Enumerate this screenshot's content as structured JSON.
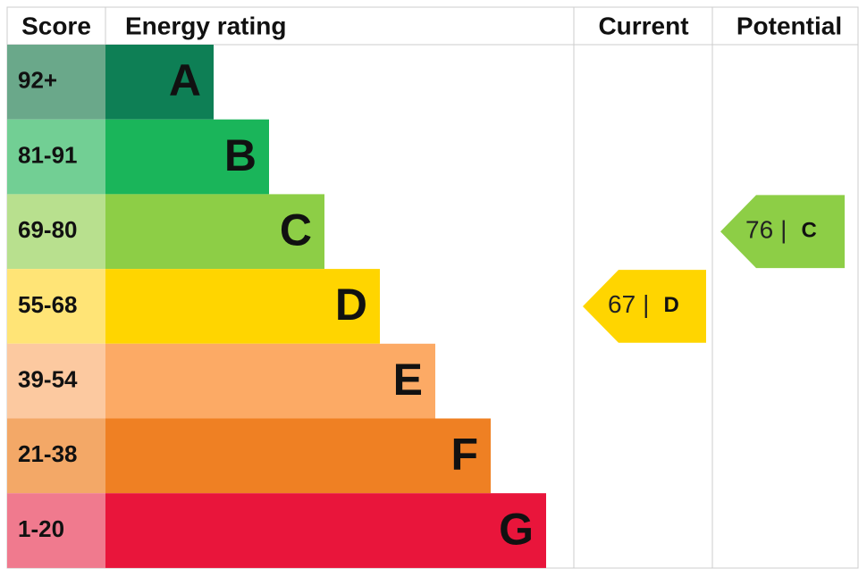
{
  "header": {
    "score": "Score",
    "rating": "Energy rating",
    "current": "Current",
    "potential": "Potential"
  },
  "bands": [
    {
      "range": "92+",
      "letter": "A",
      "color": "#0e7f55",
      "light": "#6aa88a"
    },
    {
      "range": "81-91",
      "letter": "B",
      "color": "#1ab55a",
      "light": "#72cf94"
    },
    {
      "range": "69-80",
      "letter": "C",
      "color": "#8dce46",
      "light": "#b8e08e"
    },
    {
      "range": "55-68",
      "letter": "D",
      "color": "#ffd500",
      "light": "#ffe476"
    },
    {
      "range": "39-54",
      "letter": "E",
      "color": "#fcaa65",
      "light": "#fcc9a0"
    },
    {
      "range": "21-38",
      "letter": "F",
      "color": "#ef8023",
      "light": "#f3a867"
    },
    {
      "range": "1-20",
      "letter": "G",
      "color": "#e9153b",
      "light": "#f07a8e"
    }
  ],
  "current": {
    "value": 67,
    "separator": "|",
    "rating": "D",
    "color": "#ffd500"
  },
  "potential": {
    "value": 76,
    "separator": "|",
    "rating": "C",
    "color": "#8dce46"
  }
}
